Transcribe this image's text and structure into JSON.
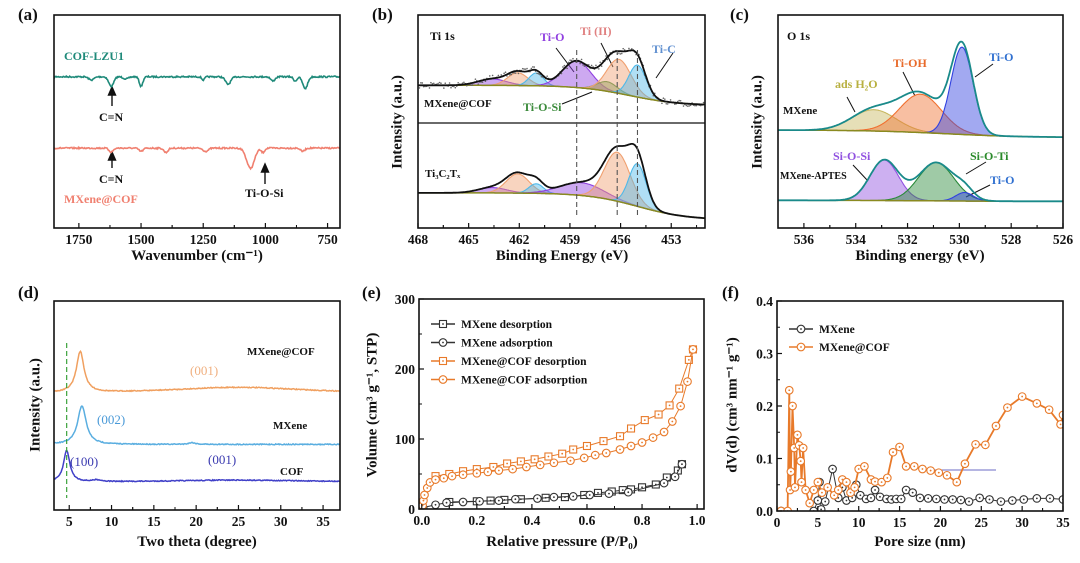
{
  "panels": {
    "a": {
      "letter": "(a)",
      "xlabel": "Wavenumber (cm⁻¹)",
      "label_cof": "COF-LZU1",
      "label_mxcof": "MXene@COF",
      "ann_cn1": "C=N",
      "ann_cn2": "C=N",
      "ann_tios": "Ti-O-Si"
    },
    "b": {
      "letter": "(b)",
      "title": "Ti 1s",
      "xlabel": "Binding Energy (eV)",
      "ylabel": "Intensity (a.u.)",
      "label_top": "MXene@COF",
      "label_bottom": "Ti₃C₂Tₓ",
      "tio": "Ti-O",
      "ti2": "Ti (II)",
      "tic": "Ti-C",
      "tiosi": "Ti-O-Si"
    },
    "c": {
      "letter": "(c)",
      "title": "O 1s",
      "xlabel": "Binding energy (eV)",
      "ylabel": "Intensity (a.u.)",
      "label_top": "MXene",
      "label_bottom": "MXene-APTES",
      "h2o": "ads H₂O",
      "tioh": "Ti-OH",
      "tio1": "Ti-O",
      "siosi": "Si-O-Si",
      "siloti": "Si-O-Ti",
      "tio2": "Ti-O"
    },
    "d": {
      "letter": "(d)",
      "xlabel": "Two theta (degree)",
      "ylabel": "Intensity (a.u.)",
      "l_mxcof": "MXene@COF",
      "l_mx": "MXene",
      "l_cof": "COF",
      "p001a": "(001)",
      "p002": "(002)",
      "p100": "(100)",
      "p001b": "(001)"
    },
    "e": {
      "letter": "(e)",
      "xlabel": "Relative pressure (P/P₀)",
      "ylabel": "Volume (cm³ g⁻¹, STP)"
    },
    "f": {
      "letter": "(f)",
      "xlabel": "Pore size (nm)",
      "ylabel": "dV(d) (cm³ nm⁻¹ g⁻¹)"
    }
  },
  "chart_data": [
    {
      "panel": "(a)",
      "type": "line",
      "xlabel": "Wavenumber (cm⁻¹)",
      "xlim": [
        1850,
        700
      ],
      "ylim": [
        0,
        10
      ],
      "grid": false,
      "xticks": [
        "1750",
        "1500",
        "1250",
        "1000",
        "750"
      ],
      "series": [
        {
          "name": "COF-LZU1",
          "color": "#1f8a7a",
          "baseline": 7.1,
          "bands": [
            [
              1700,
              0.15,
              15
            ],
            [
              1620,
              0.45,
              14
            ],
            [
              1560,
              0.1,
              15
            ],
            [
              1500,
              0.45,
              10
            ],
            [
              1250,
              0.15,
              8
            ],
            [
              1150,
              0.35,
              15
            ],
            [
              970,
              0.2,
              12
            ],
            [
              880,
              0.2,
              10
            ],
            [
              840,
              0.55,
              14
            ]
          ]
        },
        {
          "name": "MXene@COF",
          "color": "#f08070",
          "baseline": 3.75,
          "bands": [
            [
              1620,
              0.18,
              12
            ],
            [
              1500,
              0.15,
              12
            ],
            [
              1400,
              0.2,
              12
            ],
            [
              1240,
              0.15,
              15
            ],
            [
              1060,
              0.95,
              22
            ],
            [
              1010,
              0.2,
              10
            ],
            [
              850,
              0.15,
              12
            ]
          ]
        }
      ],
      "annotations": [
        {
          "text": "C=N",
          "x": 1620
        },
        {
          "text": "C=N",
          "x": 1620
        },
        {
          "text": "Ti-O-Si",
          "x": 1000
        }
      ]
    },
    {
      "panel": "(b)",
      "type": "area",
      "title": "Ti 1s",
      "xlabel": "Binding Energy (eV)",
      "ylabel": "Intensity (a.u.)",
      "xlim": [
        468,
        451
      ],
      "ylim": [
        0,
        10
      ],
      "xticks": [
        "468",
        "465",
        "462",
        "459",
        "456",
        "453"
      ],
      "vlines": [
        458.6,
        456.2,
        455.0
      ],
      "spectra": [
        {
          "name": "MXene@COF",
          "baseline": {
            "left": 6.7,
            "right": 5.75,
            "center": 455.5
          },
          "components": [
            {
              "label": "Ti-O",
              "center": 463.6,
              "fwhm": 2.0,
              "height": 0.3,
              "color": "#9040e0"
            },
            {
              "label": "",
              "center": 462.1,
              "fwhm": 1.4,
              "height": 0.6,
              "color": "#f0a070"
            },
            {
              "label": "",
              "center": 461.0,
              "fwhm": 1.0,
              "height": 0.6,
              "color": "#4fb8e8"
            },
            {
              "label": "Ti-O",
              "center": 458.6,
              "fwhm": 2.0,
              "height": 1.25,
              "color": "#9040e0"
            },
            {
              "label": "Ti-O-Si",
              "center": 456.8,
              "fwhm": 1.4,
              "height": 0.45,
              "color": "#4a9a4a"
            },
            {
              "label": "Ti (II)",
              "center": 456.1,
              "fwhm": 1.7,
              "height": 1.6,
              "color": "#f0a070"
            },
            {
              "label": "Ti-C",
              "center": 455.0,
              "fwhm": 1.2,
              "height": 1.5,
              "color": "#4fb8e8"
            }
          ]
        },
        {
          "name": "Ti₃C₂Tₓ",
          "baseline": {
            "left": 1.65,
            "right": 0.38,
            "center": 455.0
          },
          "components": [
            {
              "label": "",
              "center": 463.6,
              "fwhm": 2.0,
              "height": 0.25,
              "color": "#9040e0"
            },
            {
              "label": "",
              "center": 462.1,
              "fwhm": 1.6,
              "height": 0.9,
              "color": "#f0a070"
            },
            {
              "label": "",
              "center": 461.0,
              "fwhm": 1.0,
              "height": 0.45,
              "color": "#4fb8e8"
            },
            {
              "label": "",
              "center": 458.3,
              "fwhm": 3.0,
              "height": 0.6,
              "color": "#9040e0"
            },
            {
              "label": "",
              "center": 456.2,
              "fwhm": 1.8,
              "height": 2.3,
              "color": "#f0a070"
            },
            {
              "label": "",
              "center": 455.0,
              "fwhm": 1.2,
              "height": 2.0,
              "color": "#4fb8e8"
            }
          ]
        }
      ]
    },
    {
      "panel": "(c)",
      "type": "area",
      "title": "O 1s",
      "xlabel": "Binding energy (eV)",
      "ylabel": "Intensity (a.u.)",
      "xlim": [
        537,
        526
      ],
      "ylim": [
        0,
        10
      ],
      "xticks": [
        "536",
        "534",
        "532",
        "530",
        "528",
        "526"
      ],
      "spectra": [
        {
          "name": "MXene",
          "baseline": {
            "left": 4.6,
            "right": 4.25,
            "center": 530.5
          },
          "components": [
            {
              "label": "ads H₂O",
              "center": 533.3,
              "fwhm": 2.0,
              "height": 1.0,
              "color": "#c8b860"
            },
            {
              "label": "Ti-OH",
              "center": 531.5,
              "fwhm": 1.9,
              "height": 1.8,
              "color": "#f07030"
            },
            {
              "label": "Ti-O",
              "center": 529.9,
              "fwhm": 1.0,
              "height": 4.1,
              "color": "#3040e0"
            }
          ]
        },
        {
          "name": "MXene-APTES",
          "baseline": {
            "left": 1.3,
            "right": 1.25,
            "center": 531
          },
          "components": [
            {
              "label": "Si-O-Si",
              "center": 532.9,
              "fwhm": 1.3,
              "height": 1.9,
              "color": "#9050e0"
            },
            {
              "label": "Si-O-Ti",
              "center": 530.9,
              "fwhm": 1.6,
              "height": 1.8,
              "color": "#2a8a3a"
            },
            {
              "label": "Ti-O",
              "center": 529.8,
              "fwhm": 0.8,
              "height": 0.4,
              "color": "#3040e0"
            }
          ]
        }
      ]
    },
    {
      "panel": "(d)",
      "type": "line",
      "xlabel": "Two theta (degree)",
      "ylabel": "Intensity (a.u.)",
      "xlim": [
        3.2,
        37
      ],
      "ylim": [
        0,
        10
      ],
      "xticks": [
        "5",
        "10",
        "15",
        "20",
        "25",
        "30",
        "35"
      ],
      "vlines": [
        4.7
      ],
      "series": [
        {
          "name": "MXene@COF",
          "color": "#f0a060",
          "baseline": 5.57,
          "peaks": [
            [
              6.3,
              1.95,
              0.55
            ],
            [
              25,
              0.3,
              10
            ]
          ]
        },
        {
          "name": "MXene",
          "color": "#5aaee0",
          "baseline": 3.14,
          "peaks": [
            [
              6.5,
              1.85,
              0.6
            ],
            [
              19.5,
              0.08,
              0.5
            ]
          ]
        },
        {
          "name": "COF",
          "color": "#4040c8",
          "baseline": 1.33,
          "peaks": [
            [
              4.7,
              1.5,
              0.45
            ],
            [
              8.3,
              0.08,
              0.6
            ],
            [
              25,
              0.1,
              10
            ]
          ]
        }
      ]
    },
    {
      "panel": "(e)",
      "type": "scatter",
      "xlabel": "Relative pressure (P/P₀)",
      "ylabel": "Volume (cm³ g⁻¹, STP)",
      "xlim": [
        -0.01,
        1.025
      ],
      "ylim": [
        0,
        300
      ],
      "xticks": [
        "0.0",
        "0.2",
        "0.4",
        "0.6",
        "0.8",
        "1.0"
      ],
      "yticks": [
        "0",
        "100",
        "200",
        "300"
      ],
      "legend": "top-left",
      "series": [
        {
          "name": "MXene desorption",
          "color": "#333333",
          "marker": "square",
          "x": [
            0.1,
            0.2,
            0.25,
            0.3,
            0.36,
            0.45,
            0.52,
            0.59,
            0.64,
            0.69,
            0.73,
            0.76,
            0.8,
            0.85,
            0.89,
            0.93,
            0.945
          ],
          "y": [
            10,
            11,
            12,
            13,
            14,
            16,
            17,
            20,
            23,
            25,
            27,
            28,
            31,
            35,
            45,
            55,
            64
          ]
        },
        {
          "name": "MXene adsorption",
          "color": "#333333",
          "marker": "circle",
          "x": [
            0.005,
            0.05,
            0.09,
            0.15,
            0.21,
            0.28,
            0.34,
            0.42,
            0.48,
            0.55,
            0.61,
            0.68,
            0.75,
            0.88,
            0.92,
            0.945
          ],
          "y": [
            2,
            6,
            9,
            10,
            11,
            12,
            14,
            15,
            17,
            18,
            20,
            22,
            24,
            37,
            46,
            64
          ]
        },
        {
          "name": "MXene@COF desorption",
          "color": "#e87a2a",
          "marker": "square",
          "x": [
            0.05,
            0.1,
            0.15,
            0.2,
            0.26,
            0.31,
            0.36,
            0.41,
            0.46,
            0.51,
            0.55,
            0.6,
            0.66,
            0.72,
            0.76,
            0.81,
            0.86,
            0.9,
            0.935,
            0.97,
            0.985
          ],
          "y": [
            47,
            50,
            54,
            57,
            60,
            65,
            68,
            71,
            75,
            79,
            85,
            90,
            97,
            104,
            115,
            127,
            135,
            148,
            172,
            213,
            228
          ]
        },
        {
          "name": "MXene@COF adsorption",
          "color": "#e87a2a",
          "marker": "circle",
          "x": [
            0.003,
            0.006,
            0.01,
            0.02,
            0.03,
            0.05,
            0.08,
            0.11,
            0.15,
            0.2,
            0.24,
            0.28,
            0.33,
            0.38,
            0.43,
            0.48,
            0.54,
            0.59,
            0.63,
            0.67,
            0.72,
            0.76,
            0.8,
            0.84,
            0.88,
            0.91,
            0.94,
            0.965,
            0.985
          ],
          "y": [
            5,
            12,
            20,
            30,
            38,
            42,
            44,
            47,
            49,
            51,
            53,
            55,
            57,
            60,
            63,
            66,
            69,
            73,
            77,
            80,
            85,
            90,
            95,
            102,
            110,
            125,
            147,
            182,
            228
          ]
        }
      ]
    },
    {
      "panel": "(f)",
      "type": "scatter",
      "xlabel": "Pore size (nm)",
      "ylabel": "dV(d) (cm³ nm⁻¹ g⁻¹)",
      "xlim": [
        0,
        35
      ],
      "ylim": [
        0,
        0.4
      ],
      "xticks": [
        "0",
        "5",
        "10",
        "15",
        "20",
        "25",
        "30",
        "35"
      ],
      "yticks": [
        "0.0",
        "0.1",
        "0.2",
        "0.3",
        "0.4"
      ],
      "legend": "top-left",
      "series": [
        {
          "name": "MXene",
          "color": "#333333",
          "marker": "circle",
          "x": [
            0.5,
            4.5,
            5.0,
            5.2,
            5.4,
            5.9,
            6.8,
            7.5,
            8.0,
            8.5,
            9.2,
            9.7,
            10.2,
            10.9,
            11.5,
            12.0,
            12.6,
            13.4,
            14.0,
            14.6,
            15.2,
            15.8,
            16.6,
            17.5,
            18.5,
            19.5,
            20.5,
            21.5,
            22.5,
            23.5,
            24.8,
            26.0,
            27.4,
            28.8,
            30.2,
            31.8,
            33.4,
            35.0
          ],
          "y": [
            0,
            0,
            0.02,
            0.055,
            0.003,
            0.018,
            0.08,
            0.025,
            0.045,
            0.02,
            0.025,
            0.05,
            0.03,
            0.023,
            0.025,
            0.04,
            0.027,
            0.023,
            0.022,
            0.023,
            0.023,
            0.04,
            0.035,
            0.025,
            0.024,
            0.023,
            0.022,
            0.022,
            0.021,
            0.018,
            0.025,
            0.022,
            0.018,
            0.02,
            0.022,
            0.024,
            0.024,
            0.022
          ]
        },
        {
          "name": "MXene@COF",
          "color": "#e87a2a",
          "marker": "circle",
          "x": [
            0.5,
            1.3,
            1.5,
            1.6,
            1.7,
            1.9,
            2.1,
            2.2,
            2.5,
            2.7,
            2.9,
            3.0,
            3.2,
            3.5,
            4.0,
            4.5,
            5.0,
            5.5,
            6.2,
            7.0,
            7.5,
            8.0,
            8.5,
            9.0,
            9.5,
            10.0,
            10.7,
            11.5,
            12.0,
            12.8,
            13.5,
            14.2,
            15.0,
            15.8,
            16.8,
            17.8,
            18.8,
            19.8,
            20.8,
            22.0,
            23.0,
            24.3,
            25.5,
            26.8,
            28.2,
            30.0,
            31.8,
            33.3,
            34.7,
            35.0
          ],
          "y": [
            0,
            0,
            0.23,
            0.04,
            0.075,
            0.2,
            0.12,
            0.045,
            0.145,
            0.125,
            0.095,
            0.055,
            0.12,
            0.04,
            0.015,
            0.04,
            0.055,
            0.035,
            0.045,
            0.03,
            0.04,
            0.06,
            0.055,
            0.035,
            0.045,
            0.08,
            0.085,
            0.06,
            0.056,
            0.055,
            0.063,
            0.112,
            0.122,
            0.085,
            0.085,
            0.08,
            0.077,
            0.073,
            0.068,
            0.055,
            0.09,
            0.127,
            0.126,
            0.162,
            0.197,
            0.218,
            0.205,
            0.193,
            0.165,
            0.183
          ]
        }
      ]
    }
  ]
}
